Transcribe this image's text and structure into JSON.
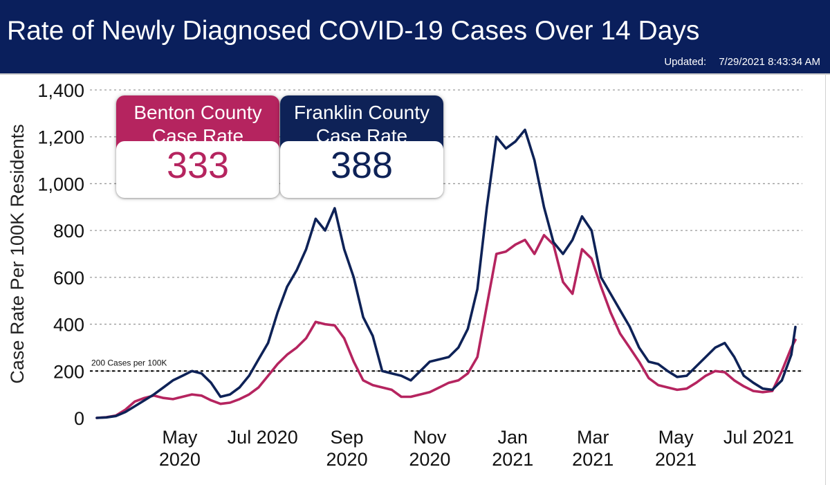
{
  "header": {
    "title": "Rate of Newly Diagnosed COVID-19 Cases Over 14 Days",
    "updated_label": "Updated:",
    "updated_value": "7/29/2021 8:43:34 AM"
  },
  "cards": {
    "benton": {
      "label_line1": "Benton County",
      "label_line2": "Case Rate",
      "value": "333"
    },
    "franklin": {
      "label_line1": "Franklin County",
      "label_line2": "Case Rate",
      "value": "388"
    }
  },
  "colors": {
    "header_bg": "#0a1f5c",
    "benton": "#b5245f",
    "franklin": "#0e2257",
    "gridline": "#9a9a9a",
    "reference": "#000000"
  },
  "chart_data": {
    "type": "line",
    "title": "",
    "xlabel": "",
    "ylabel": "Case Rate Per 100K Residents",
    "ylim": [
      0,
      1400
    ],
    "xlim": [
      "2020-03-01",
      "2021-07-28"
    ],
    "y_ticks": [
      0,
      200,
      400,
      600,
      800,
      1000,
      1200,
      1400
    ],
    "y_tick_labels": [
      "0",
      "200",
      "400",
      "600",
      "800",
      "1,000",
      "1,200",
      "1,400"
    ],
    "x_ticks": [
      {
        "date": "2020-05-01",
        "line1": "May",
        "line2": "2020"
      },
      {
        "date": "2020-07-01",
        "line1": "Jul 2020",
        "line2": ""
      },
      {
        "date": "2020-09-01",
        "line1": "Sep",
        "line2": "2020"
      },
      {
        "date": "2020-11-01",
        "line1": "Nov",
        "line2": "2020"
      },
      {
        "date": "2021-01-01",
        "line1": "Jan",
        "line2": "2021"
      },
      {
        "date": "2021-03-01",
        "line1": "Mar",
        "line2": "2021"
      },
      {
        "date": "2021-05-01",
        "line1": "May",
        "line2": "2021"
      },
      {
        "date": "2021-07-01",
        "line1": "Jul 2021",
        "line2": ""
      }
    ],
    "grid": "horizontal-dotted",
    "reference_line": {
      "y": 200,
      "label": "200 Cases per 100K"
    },
    "series": [
      {
        "name": "Benton County",
        "color": "#b5245f",
        "points": [
          [
            "2020-03-01",
            0
          ],
          [
            "2020-03-08",
            3
          ],
          [
            "2020-03-15",
            10
          ],
          [
            "2020-03-22",
            35
          ],
          [
            "2020-03-29",
            70
          ],
          [
            "2020-04-05",
            85
          ],
          [
            "2020-04-12",
            95
          ],
          [
            "2020-04-19",
            85
          ],
          [
            "2020-04-26",
            80
          ],
          [
            "2020-05-03",
            90
          ],
          [
            "2020-05-10",
            100
          ],
          [
            "2020-05-17",
            95
          ],
          [
            "2020-05-24",
            75
          ],
          [
            "2020-05-31",
            60
          ],
          [
            "2020-06-07",
            65
          ],
          [
            "2020-06-14",
            80
          ],
          [
            "2020-06-21",
            100
          ],
          [
            "2020-06-28",
            130
          ],
          [
            "2020-07-05",
            180
          ],
          [
            "2020-07-12",
            230
          ],
          [
            "2020-07-19",
            270
          ],
          [
            "2020-07-26",
            300
          ],
          [
            "2020-08-02",
            340
          ],
          [
            "2020-08-09",
            410
          ],
          [
            "2020-08-16",
            400
          ],
          [
            "2020-08-23",
            395
          ],
          [
            "2020-08-30",
            340
          ],
          [
            "2020-09-06",
            240
          ],
          [
            "2020-09-13",
            160
          ],
          [
            "2020-09-20",
            140
          ],
          [
            "2020-09-27",
            130
          ],
          [
            "2020-10-04",
            120
          ],
          [
            "2020-10-11",
            90
          ],
          [
            "2020-10-18",
            90
          ],
          [
            "2020-10-25",
            100
          ],
          [
            "2020-11-01",
            110
          ],
          [
            "2020-11-08",
            130
          ],
          [
            "2020-11-15",
            150
          ],
          [
            "2020-11-22",
            160
          ],
          [
            "2020-11-29",
            190
          ],
          [
            "2020-12-06",
            260
          ],
          [
            "2020-12-13",
            480
          ],
          [
            "2020-12-20",
            700
          ],
          [
            "2020-12-27",
            710
          ],
          [
            "2021-01-03",
            740
          ],
          [
            "2021-01-10",
            760
          ],
          [
            "2021-01-17",
            700
          ],
          [
            "2021-01-24",
            780
          ],
          [
            "2021-01-31",
            740
          ],
          [
            "2021-02-07",
            580
          ],
          [
            "2021-02-14",
            530
          ],
          [
            "2021-02-21",
            720
          ],
          [
            "2021-02-28",
            680
          ],
          [
            "2021-03-07",
            560
          ],
          [
            "2021-03-14",
            450
          ],
          [
            "2021-03-21",
            360
          ],
          [
            "2021-03-28",
            300
          ],
          [
            "2021-04-04",
            240
          ],
          [
            "2021-04-11",
            170
          ],
          [
            "2021-04-18",
            140
          ],
          [
            "2021-04-25",
            130
          ],
          [
            "2021-05-02",
            120
          ],
          [
            "2021-05-09",
            125
          ],
          [
            "2021-05-16",
            150
          ],
          [
            "2021-05-23",
            180
          ],
          [
            "2021-05-30",
            200
          ],
          [
            "2021-06-06",
            195
          ],
          [
            "2021-06-13",
            160
          ],
          [
            "2021-06-20",
            135
          ],
          [
            "2021-06-27",
            115
          ],
          [
            "2021-07-04",
            110
          ],
          [
            "2021-07-11",
            115
          ],
          [
            "2021-07-18",
            200
          ],
          [
            "2021-07-25",
            300
          ],
          [
            "2021-07-28",
            333
          ]
        ]
      },
      {
        "name": "Franklin County",
        "color": "#0e2257",
        "points": [
          [
            "2020-03-01",
            0
          ],
          [
            "2020-03-08",
            2
          ],
          [
            "2020-03-15",
            8
          ],
          [
            "2020-03-22",
            25
          ],
          [
            "2020-03-29",
            50
          ],
          [
            "2020-04-05",
            75
          ],
          [
            "2020-04-12",
            100
          ],
          [
            "2020-04-19",
            130
          ],
          [
            "2020-04-26",
            160
          ],
          [
            "2020-05-03",
            180
          ],
          [
            "2020-05-10",
            200
          ],
          [
            "2020-05-17",
            190
          ],
          [
            "2020-05-24",
            150
          ],
          [
            "2020-05-31",
            90
          ],
          [
            "2020-06-07",
            100
          ],
          [
            "2020-06-14",
            130
          ],
          [
            "2020-06-21",
            180
          ],
          [
            "2020-06-28",
            250
          ],
          [
            "2020-07-05",
            320
          ],
          [
            "2020-07-12",
            450
          ],
          [
            "2020-07-19",
            560
          ],
          [
            "2020-07-26",
            630
          ],
          [
            "2020-08-02",
            720
          ],
          [
            "2020-08-09",
            850
          ],
          [
            "2020-08-16",
            800
          ],
          [
            "2020-08-23",
            895
          ],
          [
            "2020-08-30",
            720
          ],
          [
            "2020-09-06",
            600
          ],
          [
            "2020-09-13",
            430
          ],
          [
            "2020-09-20",
            350
          ],
          [
            "2020-09-27",
            200
          ],
          [
            "2020-10-04",
            190
          ],
          [
            "2020-10-11",
            180
          ],
          [
            "2020-10-18",
            160
          ],
          [
            "2020-10-25",
            200
          ],
          [
            "2020-11-01",
            240
          ],
          [
            "2020-11-08",
            250
          ],
          [
            "2020-11-15",
            260
          ],
          [
            "2020-11-22",
            300
          ],
          [
            "2020-11-29",
            380
          ],
          [
            "2020-12-06",
            550
          ],
          [
            "2020-12-13",
            900
          ],
          [
            "2020-12-20",
            1200
          ],
          [
            "2020-12-27",
            1150
          ],
          [
            "2021-01-03",
            1180
          ],
          [
            "2021-01-10",
            1230
          ],
          [
            "2021-01-17",
            1100
          ],
          [
            "2021-01-24",
            900
          ],
          [
            "2021-01-31",
            750
          ],
          [
            "2021-02-07",
            700
          ],
          [
            "2021-02-14",
            760
          ],
          [
            "2021-02-21",
            860
          ],
          [
            "2021-02-28",
            800
          ],
          [
            "2021-03-07",
            600
          ],
          [
            "2021-03-14",
            530
          ],
          [
            "2021-03-21",
            460
          ],
          [
            "2021-03-28",
            390
          ],
          [
            "2021-04-04",
            300
          ],
          [
            "2021-04-11",
            240
          ],
          [
            "2021-04-18",
            230
          ],
          [
            "2021-04-25",
            200
          ],
          [
            "2021-05-02",
            175
          ],
          [
            "2021-05-09",
            180
          ],
          [
            "2021-05-16",
            220
          ],
          [
            "2021-05-23",
            260
          ],
          [
            "2021-05-30",
            300
          ],
          [
            "2021-06-06",
            320
          ],
          [
            "2021-06-13",
            260
          ],
          [
            "2021-06-20",
            180
          ],
          [
            "2021-06-27",
            150
          ],
          [
            "2021-07-04",
            125
          ],
          [
            "2021-07-11",
            120
          ],
          [
            "2021-07-18",
            160
          ],
          [
            "2021-07-25",
            270
          ],
          [
            "2021-07-28",
            388
          ]
        ]
      }
    ]
  }
}
